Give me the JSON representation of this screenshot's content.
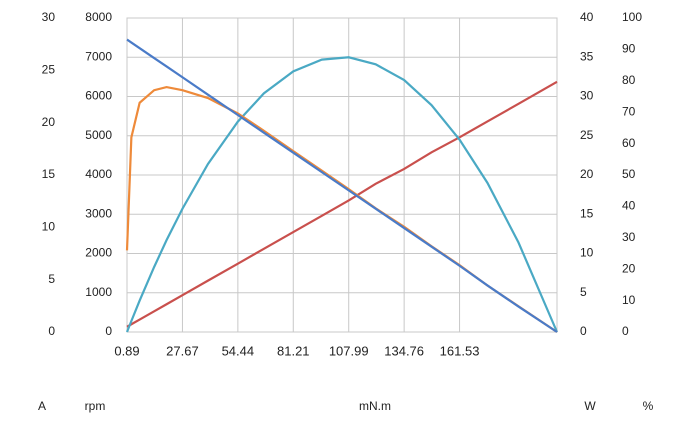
{
  "chart_data": {
    "type": "line",
    "xlabel": "mN.m",
    "xlim": [
      0.89,
      208.6
    ],
    "xticks": [
      0.89,
      27.67,
      54.44,
      81.21,
      107.99,
      134.76,
      161.53
    ],
    "grid": true,
    "axes": [
      {
        "label": "A",
        "side": "left",
        "lim": [
          0,
          30
        ],
        "ticks": [
          0,
          5,
          10,
          15,
          20,
          25,
          30
        ]
      },
      {
        "label": "rpm",
        "side": "left",
        "lim": [
          0,
          8000
        ],
        "ticks": [
          0,
          1000,
          2000,
          3000,
          4000,
          5000,
          6000,
          7000,
          8000
        ]
      },
      {
        "label": "W",
        "side": "right",
        "lim": [
          0,
          40
        ],
        "ticks": [
          0,
          5,
          10,
          15,
          20,
          25,
          30,
          35,
          40
        ]
      },
      {
        "label": "%",
        "side": "right",
        "lim": [
          0,
          100
        ],
        "ticks": [
          0,
          10,
          20,
          30,
          40,
          50,
          60,
          70,
          80,
          90,
          100
        ]
      }
    ],
    "x": [
      0.89,
      3,
      7,
      14,
      20,
      27.67,
      40,
      54.44,
      67,
      81.21,
      95,
      107.99,
      121,
      134.76,
      148,
      161.53,
      175,
      190,
      208.6
    ],
    "series": [
      {
        "axis": 0,
        "color": "#c9504d",
        "values": [
          0.5,
          0.74,
          1.19,
          1.98,
          2.65,
          3.52,
          4.91,
          6.53,
          7.95,
          9.55,
          11.1,
          12.57,
          14.16,
          15.58,
          17.17,
          18.6,
          20.12,
          21.8,
          23.9
        ]
      },
      {
        "axis": 2,
        "color": "#4aa9c4",
        "values": [
          0,
          1.4,
          4.0,
          8.28,
          11.7,
          15.7,
          21.4,
          26.8,
          30.4,
          33.2,
          34.7,
          35.0,
          34.1,
          32.1,
          28.9,
          24.5,
          19.0,
          11.4,
          0
        ]
      },
      {
        "axis": 3,
        "color": "#ee8a3a",
        "values": [
          26,
          62,
          73,
          77,
          78,
          77,
          74.5,
          69.6,
          64.1,
          57.6,
          51.4,
          45.5,
          39.4,
          33.5,
          27.3,
          21.3,
          14.8,
          8.2,
          0
        ]
      },
      {
        "axis": 1,
        "color": "#4a7bc8",
        "values": [
          7450,
          7374,
          7231,
          6980,
          6765,
          6490,
          6047,
          5529,
          5078,
          4569,
          4074,
          3608,
          3141,
          2648,
          2174,
          1688,
          1186,
          648,
          0
        ]
      }
    ]
  }
}
